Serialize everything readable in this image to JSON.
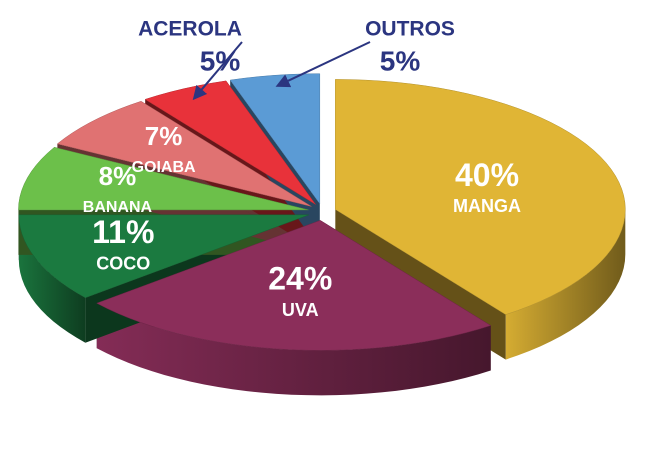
{
  "chart_data": {
    "type": "pie",
    "categories": [
      "MANGA",
      "UVA",
      "COCO",
      "BANANA",
      "GOIABA",
      "ACEROLA",
      "OUTROS"
    ],
    "values": [
      40,
      24,
      11,
      8,
      7,
      5,
      5
    ],
    "value_labels": [
      "40%",
      "24%",
      "11%",
      "8%",
      "7%",
      "5%",
      "5%"
    ],
    "colors": [
      "#e0b535",
      "#8b2e5a",
      "#1b7a40",
      "#6cc04a",
      "#e07272",
      "#e8323a",
      "#5b9bd5"
    ]
  }
}
